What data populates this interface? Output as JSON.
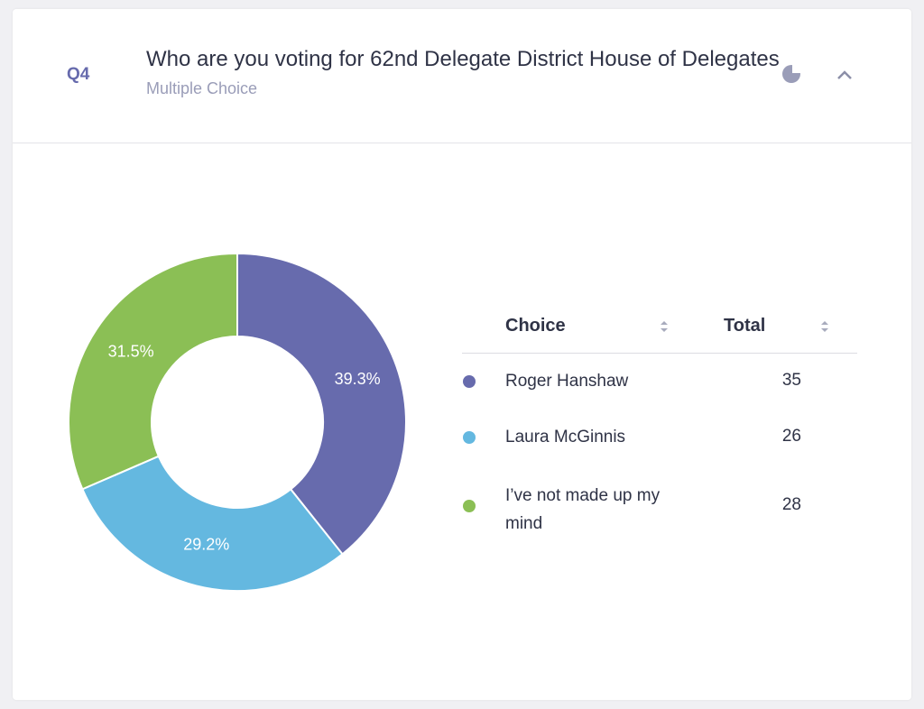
{
  "question": {
    "number": "Q4",
    "title": "Who are you voting for 62nd Delegate District House of Delegates",
    "subtitle": "Multiple Choice"
  },
  "chart_data": {
    "type": "pie",
    "donut": true,
    "categories": [
      "Roger Hanshaw",
      "Laura McGinnis",
      "I’ve not made up my mind"
    ],
    "values": [
      39.3,
      29.2,
      31.5
    ],
    "value_labels": [
      "39.3%",
      "29.2%",
      "31.5%"
    ],
    "colors": [
      "#676bad",
      "#64b8e0",
      "#8bbf55"
    ]
  },
  "table": {
    "columns": [
      "Choice",
      "Total"
    ],
    "totals": [
      35,
      26,
      28
    ]
  }
}
